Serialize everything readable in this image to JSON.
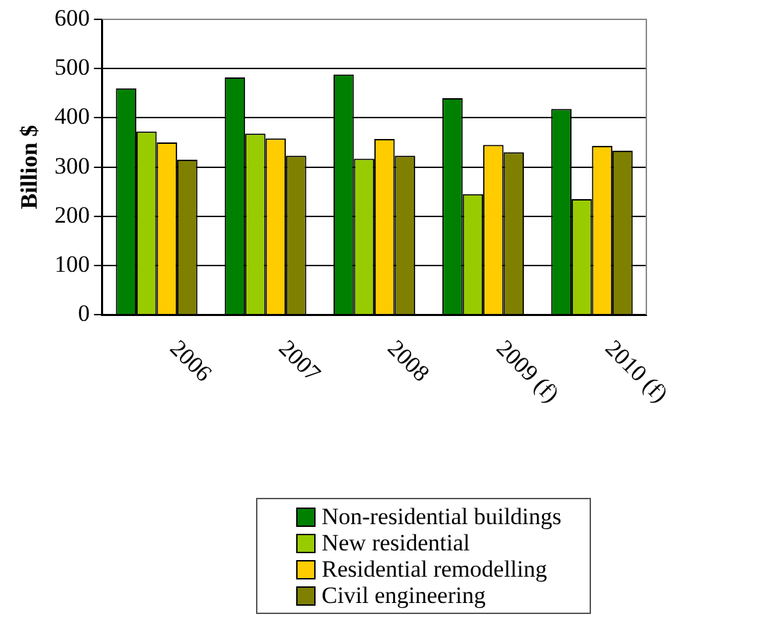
{
  "chart_data": {
    "type": "bar",
    "ylabel": "Billion $",
    "categories": [
      "2006",
      "2007",
      "2008",
      "2009 (f)",
      "2010 (f)"
    ],
    "series": [
      {
        "name": "Non-residential buildings",
        "color": "#008000",
        "values": [
          460,
          482,
          488,
          440,
          418
        ]
      },
      {
        "name": "New residential",
        "color": "#99cc00",
        "values": [
          372,
          368,
          317,
          245,
          235
        ]
      },
      {
        "name": "Residential remodelling",
        "color": "#ffcc00",
        "values": [
          350,
          358,
          357,
          345,
          343
        ]
      },
      {
        "name": "Civil engineering",
        "color": "#808000",
        "values": [
          315,
          323,
          323,
          330,
          333
        ]
      }
    ],
    "ylim": [
      0,
      600
    ],
    "yticks": [
      0,
      100,
      200,
      300,
      400,
      500,
      600
    ],
    "grid": "y",
    "legend": "bottom"
  }
}
